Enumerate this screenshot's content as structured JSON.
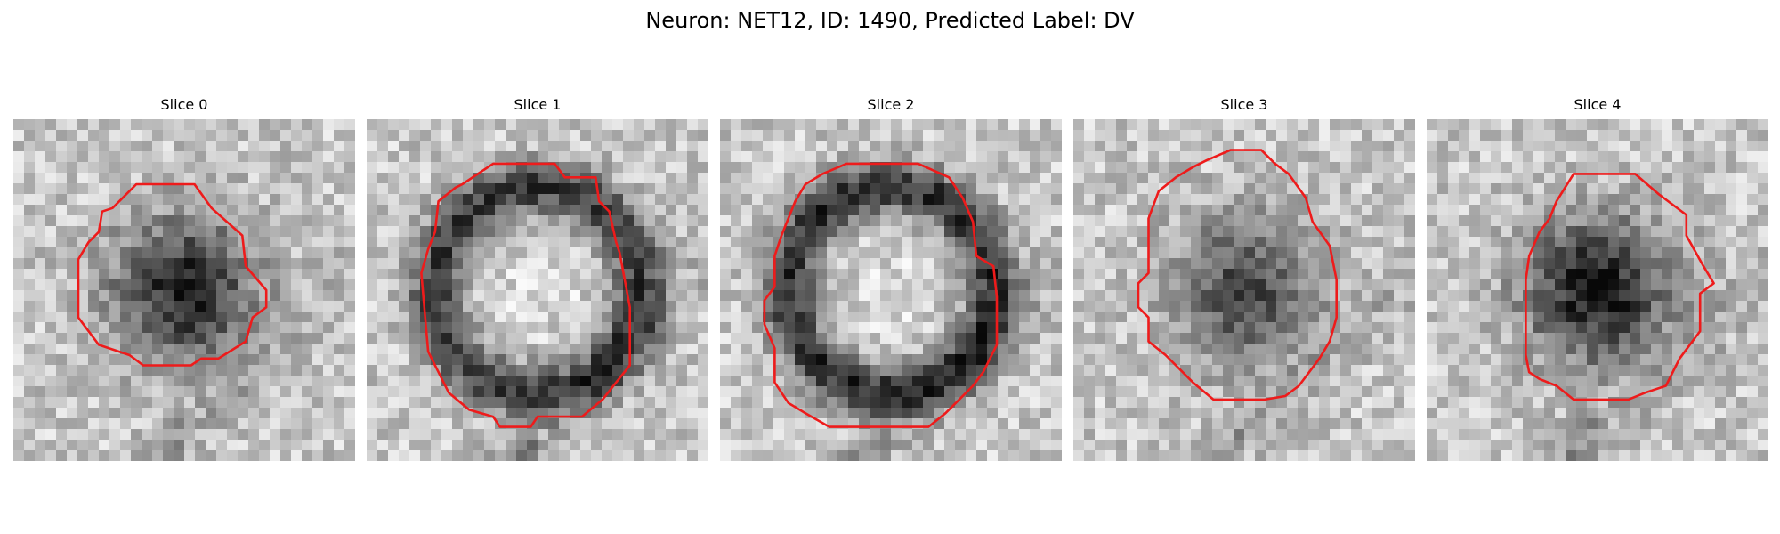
{
  "figure": {
    "title": "Neuron: NET12, ID: 1490, Predicted Label: DV"
  },
  "panels": [
    {
      "title": "Slice 0",
      "seed": 11,
      "darkness": 0.65,
      "ring": false,
      "contour": [
        [
          0.36,
          0.19
        ],
        [
          0.53,
          0.19
        ],
        [
          0.58,
          0.26
        ],
        [
          0.67,
          0.34
        ],
        [
          0.68,
          0.43
        ],
        [
          0.74,
          0.5
        ],
        [
          0.74,
          0.55
        ],
        [
          0.7,
          0.58
        ],
        [
          0.68,
          0.65
        ],
        [
          0.6,
          0.7
        ],
        [
          0.55,
          0.7
        ],
        [
          0.52,
          0.72
        ],
        [
          0.38,
          0.72
        ],
        [
          0.34,
          0.69
        ],
        [
          0.25,
          0.66
        ],
        [
          0.19,
          0.58
        ],
        [
          0.19,
          0.41
        ],
        [
          0.22,
          0.36
        ],
        [
          0.25,
          0.33
        ],
        [
          0.26,
          0.27
        ],
        [
          0.29,
          0.26
        ]
      ]
    },
    {
      "title": "Slice 1",
      "seed": 23,
      "darkness": 0.55,
      "ring": true,
      "contour": [
        [
          0.37,
          0.13
        ],
        [
          0.55,
          0.13
        ],
        [
          0.58,
          0.17
        ],
        [
          0.67,
          0.17
        ],
        [
          0.68,
          0.24
        ],
        [
          0.71,
          0.27
        ],
        [
          0.73,
          0.36
        ],
        [
          0.74,
          0.39
        ],
        [
          0.77,
          0.55
        ],
        [
          0.77,
          0.72
        ],
        [
          0.73,
          0.77
        ],
        [
          0.69,
          0.82
        ],
        [
          0.63,
          0.87
        ],
        [
          0.5,
          0.87
        ],
        [
          0.48,
          0.9
        ],
        [
          0.39,
          0.9
        ],
        [
          0.37,
          0.87
        ],
        [
          0.3,
          0.85
        ],
        [
          0.24,
          0.8
        ],
        [
          0.22,
          0.76
        ],
        [
          0.18,
          0.68
        ],
        [
          0.16,
          0.45
        ],
        [
          0.18,
          0.38
        ],
        [
          0.2,
          0.33
        ],
        [
          0.21,
          0.24
        ],
        [
          0.26,
          0.2
        ],
        [
          0.28,
          0.19
        ]
      ]
    },
    {
      "title": "Slice 2",
      "seed": 37,
      "darkness": 0.6,
      "ring": true,
      "contour": [
        [
          0.37,
          0.13
        ],
        [
          0.58,
          0.13
        ],
        [
          0.67,
          0.17
        ],
        [
          0.71,
          0.23
        ],
        [
          0.74,
          0.3
        ],
        [
          0.75,
          0.4
        ],
        [
          0.8,
          0.43
        ],
        [
          0.81,
          0.52
        ],
        [
          0.81,
          0.66
        ],
        [
          0.77,
          0.74
        ],
        [
          0.74,
          0.78
        ],
        [
          0.69,
          0.83
        ],
        [
          0.66,
          0.86
        ],
        [
          0.61,
          0.9
        ],
        [
          0.32,
          0.9
        ],
        [
          0.25,
          0.86
        ],
        [
          0.2,
          0.83
        ],
        [
          0.16,
          0.77
        ],
        [
          0.16,
          0.67
        ],
        [
          0.13,
          0.6
        ],
        [
          0.13,
          0.53
        ],
        [
          0.16,
          0.49
        ],
        [
          0.16,
          0.4
        ],
        [
          0.18,
          0.34
        ],
        [
          0.22,
          0.24
        ],
        [
          0.25,
          0.19
        ],
        [
          0.3,
          0.16
        ]
      ]
    },
    {
      "title": "Slice 3",
      "seed": 52,
      "darkness": 0.5,
      "ring": false,
      "contour": [
        [
          0.46,
          0.09
        ],
        [
          0.55,
          0.09
        ],
        [
          0.59,
          0.13
        ],
        [
          0.63,
          0.16
        ],
        [
          0.68,
          0.23
        ],
        [
          0.7,
          0.3
        ],
        [
          0.75,
          0.37
        ],
        [
          0.77,
          0.47
        ],
        [
          0.77,
          0.58
        ],
        [
          0.75,
          0.65
        ],
        [
          0.72,
          0.7
        ],
        [
          0.66,
          0.78
        ],
        [
          0.62,
          0.81
        ],
        [
          0.56,
          0.82
        ],
        [
          0.41,
          0.82
        ],
        [
          0.35,
          0.77
        ],
        [
          0.27,
          0.69
        ],
        [
          0.22,
          0.65
        ],
        [
          0.22,
          0.58
        ],
        [
          0.19,
          0.55
        ],
        [
          0.19,
          0.48
        ],
        [
          0.22,
          0.45
        ],
        [
          0.22,
          0.29
        ],
        [
          0.25,
          0.21
        ],
        [
          0.3,
          0.17
        ],
        [
          0.35,
          0.14
        ],
        [
          0.39,
          0.12
        ]
      ]
    },
    {
      "title": "Slice 4",
      "seed": 68,
      "darkness": 0.7,
      "ring": false,
      "contour": [
        [
          0.43,
          0.16
        ],
        [
          0.61,
          0.16
        ],
        [
          0.68,
          0.22
        ],
        [
          0.76,
          0.28
        ],
        [
          0.76,
          0.34
        ],
        [
          0.81,
          0.43
        ],
        [
          0.84,
          0.48
        ],
        [
          0.8,
          0.51
        ],
        [
          0.8,
          0.62
        ],
        [
          0.77,
          0.66
        ],
        [
          0.74,
          0.7
        ],
        [
          0.7,
          0.78
        ],
        [
          0.64,
          0.8
        ],
        [
          0.59,
          0.82
        ],
        [
          0.43,
          0.82
        ],
        [
          0.38,
          0.78
        ],
        [
          0.33,
          0.76
        ],
        [
          0.3,
          0.74
        ],
        [
          0.29,
          0.69
        ],
        [
          0.29,
          0.47
        ],
        [
          0.3,
          0.4
        ],
        [
          0.33,
          0.33
        ],
        [
          0.36,
          0.29
        ],
        [
          0.38,
          0.24
        ]
      ]
    }
  ],
  "colors": {
    "contour": "#ee1b1b",
    "background": "#ffffff"
  }
}
